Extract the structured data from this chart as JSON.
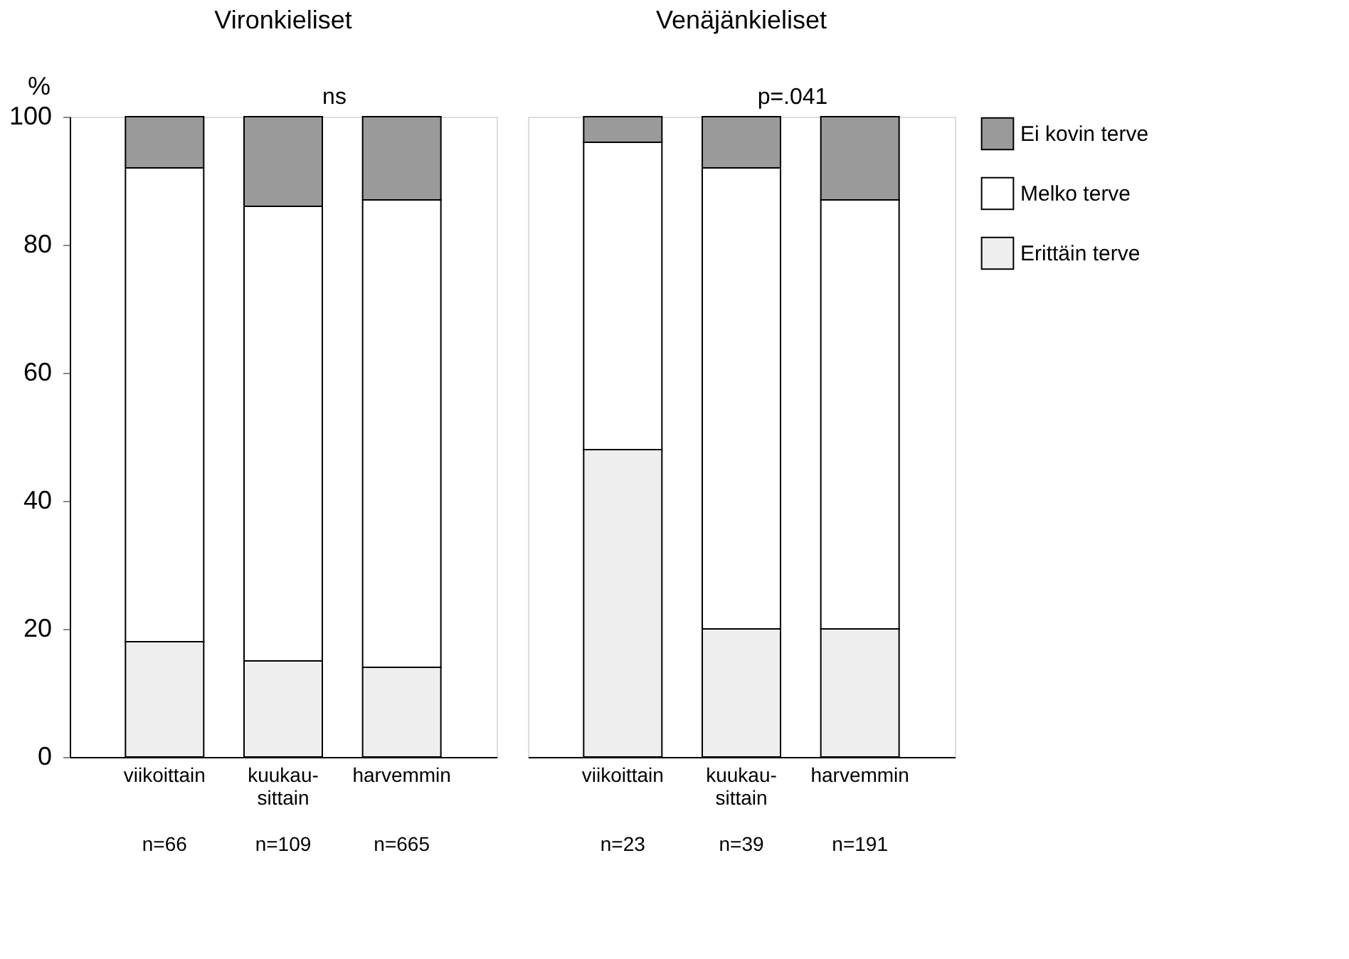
{
  "chart_data": [
    {
      "type": "bar",
      "title": "Vironkieliset",
      "ylabel": "%",
      "stacked": true,
      "ylim": [
        0,
        100
      ],
      "yticks": [
        0,
        20,
        40,
        60,
        80,
        100
      ],
      "categories": [
        "viikoittain",
        "kuukau-\nsittain",
        "harvemmin"
      ],
      "series": [
        {
          "color": "#eeeeee",
          "values": [
            18,
            15,
            14
          ]
        },
        {
          "color": "#ffffff",
          "values": [
            74,
            71,
            73
          ]
        },
        {
          "color": "#9a9a9a",
          "values": [
            8,
            14,
            13
          ]
        }
      ],
      "annotations": [
        "ns",
        "n=66",
        "n=109",
        "n=665"
      ]
    },
    {
      "type": "bar",
      "title": "Venäjänkieliset",
      "stacked": true,
      "legend": "right",
      "tick_labels": "x",
      "ylim": [
        0,
        100
      ],
      "categories": [
        "viikoittain",
        "kuukau-\nsittain",
        "harvemmin"
      ],
      "series": [
        {
          "name": "Erittäin terve",
          "color": "#eeeeee",
          "values": [
            48,
            20,
            20
          ]
        },
        {
          "name": "Melko terve",
          "color": "#ffffff",
          "values": [
            48,
            72,
            67
          ]
        },
        {
          "name": "Ei kovin terve",
          "color": "#9a9a9a",
          "values": [
            4,
            8,
            13
          ]
        }
      ],
      "annotations": [
        "p=.041",
        "n=23",
        "n=39",
        "n=191"
      ]
    }
  ]
}
